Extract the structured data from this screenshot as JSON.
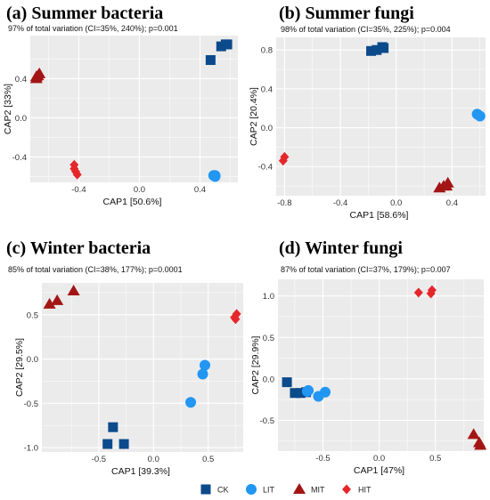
{
  "colors": {
    "CK": "#0b4a8b",
    "LIT": "#2196f3",
    "MIT": "#a31515",
    "HIT": "#e5262b",
    "panel_bg": "#ebebeb",
    "grid": "#ffffff"
  },
  "legend": {
    "position": "bottom",
    "items": [
      {
        "label": "CK",
        "shape": "square",
        "color": "#0b4a8b"
      },
      {
        "label": "LIT",
        "shape": "circle",
        "color": "#2196f3"
      },
      {
        "label": "MIT",
        "shape": "triangle",
        "color": "#a31515"
      },
      {
        "label": "HIT",
        "shape": "diamond",
        "color": "#e5262b"
      }
    ]
  },
  "chart_data": [
    {
      "type": "scatter",
      "title": "(a) Summer bacteria",
      "subtitle": "97% of total variation (CI=35%, 240%); p=0.001",
      "xlabel": "CAP1   [50.6%]",
      "ylabel": "CAP2   [33%]",
      "xlim": [
        -0.72,
        0.65
      ],
      "ylim": [
        -0.66,
        0.84
      ],
      "xticks": [
        -0.4,
        0.0,
        0.4
      ],
      "yticks": [
        -0.4,
        0.0,
        0.4
      ],
      "grid": true,
      "series": [
        {
          "name": "CK",
          "points": [
            [
              0.47,
              0.59
            ],
            [
              0.54,
              0.73
            ],
            [
              0.57,
              0.75
            ],
            [
              0.58,
              0.75
            ]
          ]
        },
        {
          "name": "LIT",
          "points": [
            [
              0.49,
              -0.59
            ],
            [
              0.5,
              -0.59
            ],
            [
              0.5,
              -0.6
            ]
          ]
        },
        {
          "name": "MIT",
          "points": [
            [
              -0.68,
              0.42
            ],
            [
              -0.66,
              0.45
            ],
            [
              -0.67,
              0.43
            ],
            [
              -0.68,
              0.4
            ]
          ]
        },
        {
          "name": "HIT",
          "points": [
            [
              -0.43,
              -0.48
            ],
            [
              -0.43,
              -0.52
            ],
            [
              -0.42,
              -0.55
            ],
            [
              -0.41,
              -0.58
            ]
          ]
        }
      ]
    },
    {
      "type": "scatter",
      "title": "(b) Summer fungi",
      "subtitle": "98% of total variation  (CI=35%, 225%); p=0.004",
      "xlabel": "CAP1   [58.6%]",
      "ylabel": "CAP2   [20.4%]",
      "xlim": [
        -0.86,
        0.64
      ],
      "ylim": [
        -0.7,
        0.93
      ],
      "xticks": [
        -0.8,
        -0.4,
        0.0,
        0.4
      ],
      "yticks": [
        -0.4,
        0.0,
        0.4,
        0.8
      ],
      "grid": true,
      "series": [
        {
          "name": "CK",
          "points": [
            [
              -0.18,
              0.79
            ],
            [
              -0.14,
              0.8
            ],
            [
              -0.1,
              0.83
            ],
            [
              -0.09,
              0.82
            ]
          ]
        },
        {
          "name": "LIT",
          "points": [
            [
              0.58,
              0.14
            ],
            [
              0.6,
              0.12
            ]
          ]
        },
        {
          "name": "MIT",
          "points": [
            [
              0.31,
              -0.62
            ],
            [
              0.34,
              -0.6
            ],
            [
              0.37,
              -0.57
            ],
            [
              0.36,
              -0.6
            ]
          ]
        },
        {
          "name": "HIT",
          "points": [
            [
              -0.8,
              -0.3
            ],
            [
              -0.81,
              -0.34
            ]
          ]
        }
      ]
    },
    {
      "type": "scatter",
      "title": "(c) Winter bacteria",
      "subtitle": "85% of total variation (CI=38%, 177%); p=0.0001",
      "xlabel": "CAP1   [39.3%]",
      "ylabel": "CAP2   [29.5%]",
      "xlim": [
        -1.02,
        0.82
      ],
      "ylim": [
        -1.05,
        0.86
      ],
      "xticks": [
        -0.5,
        0.0,
        0.5
      ],
      "yticks": [
        -1.0,
        -0.5,
        0.0,
        0.5
      ],
      "grid": true,
      "series": [
        {
          "name": "CK",
          "points": [
            [
              -0.42,
              -0.96
            ],
            [
              -0.37,
              -0.77
            ],
            [
              -0.27,
              -0.96
            ]
          ]
        },
        {
          "name": "LIT",
          "points": [
            [
              0.34,
              -0.49
            ],
            [
              0.45,
              -0.17
            ],
            [
              0.47,
              -0.07
            ]
          ]
        },
        {
          "name": "MIT",
          "points": [
            [
              -0.95,
              0.62
            ],
            [
              -0.88,
              0.66
            ],
            [
              -0.73,
              0.77
            ]
          ]
        },
        {
          "name": "HIT",
          "points": [
            [
              0.74,
              0.47
            ],
            [
              0.76,
              0.51
            ],
            [
              0.75,
              0.45
            ]
          ]
        }
      ]
    },
    {
      "type": "scatter",
      "title": "(d) Winter fungi",
      "subtitle": "87% of total variation (CI=37%, 179%); p=0.007",
      "xlabel": "CAP1   [47%]",
      "ylabel": "CAP2   [29.9%]",
      "xlim": [
        -0.9,
        0.93
      ],
      "ylim": [
        -0.87,
        1.2
      ],
      "xticks": [
        -0.5,
        0.0,
        0.5
      ],
      "yticks": [
        -0.5,
        0.0,
        0.5,
        1.0
      ],
      "grid": true,
      "series": [
        {
          "name": "CK",
          "points": [
            [
              -0.82,
              -0.04
            ],
            [
              -0.75,
              -0.17
            ],
            [
              -0.7,
              -0.17
            ],
            [
              -0.65,
              -0.16
            ]
          ]
        },
        {
          "name": "LIT",
          "points": [
            [
              -0.64,
              -0.15
            ],
            [
              -0.63,
              -0.14
            ],
            [
              -0.54,
              -0.21
            ],
            [
              -0.48,
              -0.16
            ]
          ]
        },
        {
          "name": "MIT",
          "points": [
            [
              0.84,
              -0.67
            ],
            [
              0.89,
              -0.77
            ],
            [
              0.9,
              -0.8
            ]
          ]
        },
        {
          "name": "HIT",
          "points": [
            [
              0.35,
              1.04
            ],
            [
              0.46,
              1.03
            ],
            [
              0.47,
              1.07
            ]
          ]
        }
      ]
    }
  ]
}
